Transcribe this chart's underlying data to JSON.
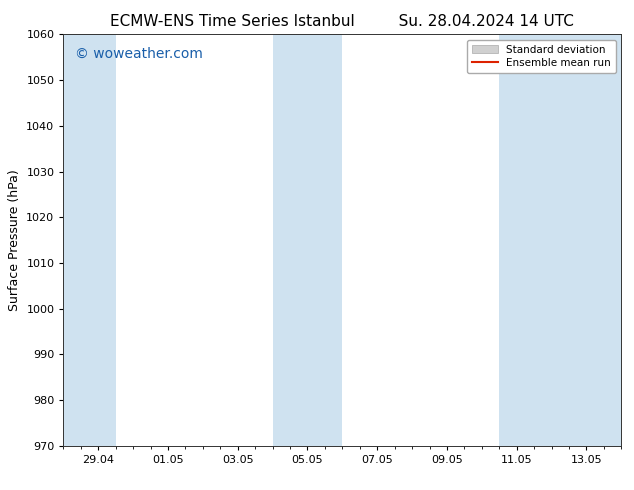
{
  "title_left": "ECMW-ENS Time Series Istanbul",
  "title_right": "Su. 28.04.2024 14 UTC",
  "ylabel": "Surface Pressure (hPa)",
  "ylim": [
    970,
    1060
  ],
  "yticks": [
    970,
    980,
    990,
    1000,
    1010,
    1020,
    1030,
    1040,
    1050,
    1060
  ],
  "xtick_labels": [
    "29.04",
    "01.05",
    "03.05",
    "05.05",
    "07.05",
    "09.05",
    "11.05",
    "13.05"
  ],
  "xtick_positions": [
    1,
    3,
    5,
    7,
    9,
    11,
    13,
    15
  ],
  "xlim": [
    0,
    16
  ],
  "shaded_bands": [
    {
      "x_start": 0.0,
      "x_end": 1.5
    },
    {
      "x_start": 6.0,
      "x_end": 8.0
    },
    {
      "x_start": 12.5,
      "x_end": 16.0
    }
  ],
  "shaded_color": "#cfe2f0",
  "background_color": "#ffffff",
  "watermark_text": "© woweather.com",
  "watermark_color": "#1a5faa",
  "watermark_fontsize": 10,
  "legend_std_label": "Standard deviation",
  "legend_ens_label": "Ensemble mean run",
  "legend_std_facecolor": "#d0d0d0",
  "legend_std_edgecolor": "#aaaaaa",
  "legend_ens_color": "#dd2200",
  "title_fontsize": 11,
  "ylabel_fontsize": 9,
  "tick_fontsize": 8,
  "legend_fontsize": 7.5
}
